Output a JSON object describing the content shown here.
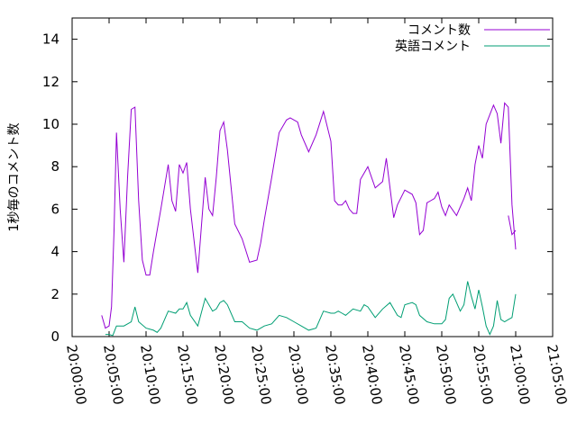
{
  "chart_data": {
    "type": "line",
    "title": "",
    "xlabel": "",
    "ylabel": "1秒毎のコメント数",
    "ylim": [
      0,
      15
    ],
    "yticks": [
      "0",
      "2",
      "4",
      "6",
      "8",
      "10",
      "12",
      "14"
    ],
    "xlim": [
      "20:00:00",
      "21:05:00"
    ],
    "xticks": [
      "20:00:00",
      "20:05:00",
      "20:10:00",
      "20:15:00",
      "20:20:00",
      "20:25:00",
      "20:30:00",
      "20:35:00",
      "20:40:00",
      "20:45:00",
      "20:50:00",
      "20:55:00",
      "21:00:00",
      "21:05:00"
    ],
    "grid": false,
    "legend": "top-right",
    "series": [
      {
        "name": "コメント数",
        "color": "#9400d3",
        "x": [
          "20:04:00",
          "20:04:30",
          "20:05:00",
          "20:05:20",
          "20:05:40",
          "20:06:00",
          "20:06:30",
          "20:07:00",
          "20:07:30",
          "20:08:00",
          "20:08:30",
          "20:09:00",
          "20:09:30",
          "20:10:00",
          "20:10:30",
          "20:11:00",
          "20:12:00",
          "20:13:00",
          "20:13:30",
          "20:14:00",
          "20:14:30",
          "20:15:00",
          "20:15:30",
          "20:16:00",
          "20:17:00",
          "20:18:00",
          "20:18:30",
          "20:19:00",
          "20:19:30",
          "20:20:00",
          "20:20:30",
          "20:21:00",
          "20:22:00",
          "20:23:00",
          "20:24:00",
          "20:25:00",
          "20:25:30",
          "20:26:00",
          "20:27:00",
          "20:28:00",
          "20:29:00",
          "20:29:30",
          "20:30:00",
          "20:30:30",
          "20:31:00",
          "20:32:00",
          "20:33:00",
          "20:34:00",
          "20:35:00",
          "20:35:30",
          "20:36:00",
          "20:36:30",
          "20:37:00",
          "20:37:30",
          "20:38:00",
          "20:38:30",
          "20:39:00",
          "20:40:00",
          "20:41:00",
          "20:42:00",
          "20:42:30",
          "20:43:00",
          "20:43:30",
          "20:44:00",
          "20:45:00",
          "20:46:00",
          "20:46:30",
          "20:47:00",
          "20:47:30",
          "20:48:00",
          "20:48:30",
          "20:49:00",
          "20:49:30",
          "20:50:00",
          "20:50:30",
          "20:51:00",
          "20:52:00",
          "20:53:00",
          "20:53:30",
          "20:54:00",
          "20:54:30",
          "20:55:00",
          "20:55:30",
          "20:56:00",
          "20:57:00",
          "20:57:30",
          "20:58:00",
          "20:58:30",
          "20:59:00",
          "20:59:30",
          "21:00:00"
        ],
        "y": [
          1.0,
          0.4,
          0.5,
          1.4,
          5.0,
          9.6,
          6.0,
          3.5,
          7.5,
          10.7,
          10.8,
          6.4,
          3.6,
          2.9,
          2.9,
          4.0,
          6.0,
          8.1,
          6.4,
          5.9,
          8.1,
          7.7,
          8.2,
          6.0,
          3.0,
          7.5,
          6.0,
          5.7,
          7.5,
          9.7,
          10.1,
          8.8,
          5.3,
          4.6,
          3.5,
          3.6,
          4.4,
          5.5,
          7.5,
          9.6,
          10.2,
          10.3,
          10.2,
          10.1,
          9.5,
          8.7,
          9.5,
          10.6,
          9.2,
          6.4,
          6.2,
          6.2,
          6.4,
          6.0,
          5.8,
          5.8,
          7.4,
          8.0,
          7.0,
          7.3,
          8.4,
          7.0,
          5.6,
          6.2,
          6.9,
          6.7,
          6.3,
          4.8,
          5.0,
          6.3,
          6.4,
          6.5,
          6.8,
          6.1,
          5.7,
          6.2,
          5.7,
          6.5,
          7.0,
          6.4,
          8.1,
          9.0,
          8.4,
          10.0,
          10.9,
          10.5,
          9.1,
          11.0,
          10.8,
          6.2,
          4.1
        ],
        "x2": [
          "20:59:00",
          "20:59:30",
          "21:00:00"
        ],
        "y2": [
          5.7,
          4.8,
          5.0
        ]
      },
      {
        "name": "英語コメント",
        "color": "#009e73",
        "x": [
          "20:04:30",
          "20:05:00",
          "20:05:30",
          "20:06:00",
          "20:07:00",
          "20:08:00",
          "20:08:30",
          "20:09:00",
          "20:10:00",
          "20:11:00",
          "20:11:30",
          "20:12:00",
          "20:13:00",
          "20:14:00",
          "20:14:30",
          "20:15:00",
          "20:15:30",
          "20:16:00",
          "20:17:00",
          "20:18:00",
          "20:19:00",
          "20:19:30",
          "20:20:00",
          "20:20:30",
          "20:21:00",
          "20:22:00",
          "20:23:00",
          "20:24:00",
          "20:25:00",
          "20:26:00",
          "20:27:00",
          "20:28:00",
          "20:29:00",
          "20:30:00",
          "20:31:00",
          "20:32:00",
          "20:33:00",
          "20:34:00",
          "20:35:00",
          "20:35:30",
          "20:36:00",
          "20:36:30",
          "20:37:00",
          "20:38:00",
          "20:39:00",
          "20:39:30",
          "20:40:00",
          "20:41:00",
          "20:42:00",
          "20:43:00",
          "20:44:00",
          "20:44:30",
          "20:45:00",
          "20:46:00",
          "20:46:30",
          "20:47:00",
          "20:48:00",
          "20:49:00",
          "20:50:00",
          "20:50:30",
          "20:51:00",
          "20:51:30",
          "20:52:00",
          "20:52:30",
          "20:53:00",
          "20:53:30",
          "20:54:00",
          "20:54:30",
          "20:55:00",
          "20:55:30",
          "20:56:00",
          "20:56:30",
          "20:57:00",
          "20:57:30",
          "20:58:00",
          "20:58:30",
          "20:59:00",
          "20:59:30",
          "21:00:00"
        ],
        "y": [
          0.1,
          0.1,
          0.05,
          0.5,
          0.5,
          0.7,
          1.4,
          0.7,
          0.4,
          0.3,
          0.2,
          0.4,
          1.2,
          1.1,
          1.3,
          1.3,
          1.6,
          1.0,
          0.5,
          1.8,
          1.2,
          1.3,
          1.6,
          1.7,
          1.5,
          0.7,
          0.7,
          0.4,
          0.3,
          0.5,
          0.6,
          1.0,
          0.9,
          0.7,
          0.5,
          0.3,
          0.4,
          1.2,
          1.1,
          1.1,
          1.2,
          1.1,
          1.0,
          1.3,
          1.2,
          1.5,
          1.4,
          0.9,
          1.3,
          1.6,
          1.0,
          0.9,
          1.5,
          1.6,
          1.5,
          1.0,
          0.7,
          0.6,
          0.6,
          0.8,
          1.8,
          2.0,
          1.6,
          1.2,
          1.5,
          2.6,
          1.9,
          1.3,
          2.2,
          1.4,
          0.5,
          0.1,
          0.5,
          1.7,
          0.8,
          0.7,
          0.8,
          0.9,
          2.0
        ]
      }
    ]
  }
}
